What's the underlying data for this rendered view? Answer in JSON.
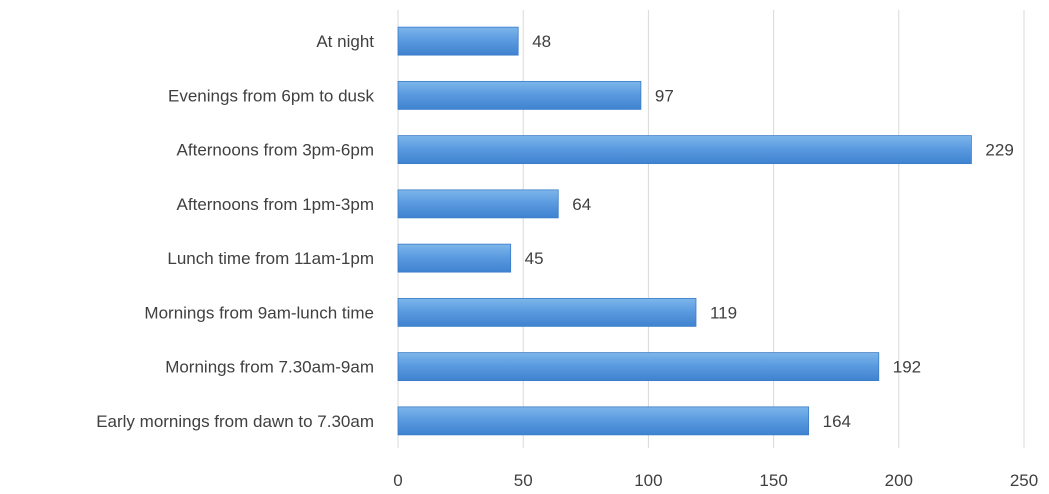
{
  "chart_data": {
    "type": "bar",
    "orientation": "horizontal",
    "categories": [
      "At night",
      "Evenings from 6pm to dusk",
      "Afternoons from 3pm-6pm",
      "Afternoons from 1pm-3pm",
      "Lunch time from 11am-1pm",
      "Mornings from 9am-lunch time",
      "Mornings from 7.30am-9am",
      "Early mornings from dawn to 7.30am"
    ],
    "values": [
      48,
      97,
      229,
      64,
      45,
      119,
      192,
      164
    ],
    "xlim": [
      0,
      250
    ],
    "xticks": [
      0,
      50,
      100,
      150,
      200,
      250
    ],
    "grid": true,
    "legend": "none",
    "bar_color": "#4a8fd6",
    "bar_color_light": "#6aaae6"
  }
}
